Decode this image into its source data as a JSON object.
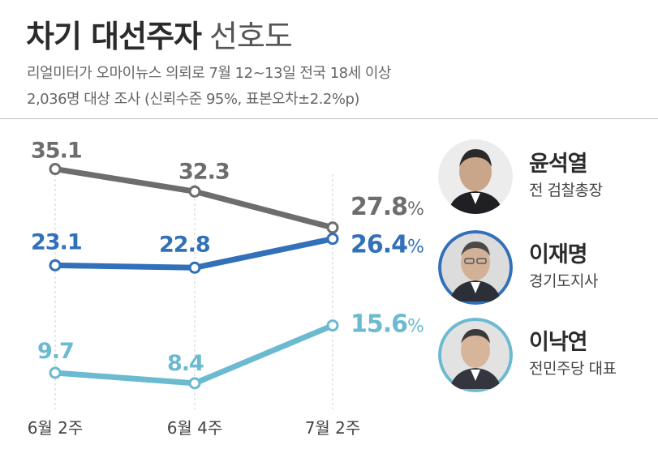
{
  "title": {
    "bold": "차기 대선주자",
    "light": "선호도"
  },
  "subtitle": {
    "line1": "리얼미터가 오마이뉴스 의뢰로 7월 12~13일 전국 18세 이상",
    "line2": "2,036명 대상 조사 (신뢰수준 95%, 표본오차±2.2%p)"
  },
  "chart_data": {
    "type": "line",
    "categories": [
      "6월 2주",
      "6월 4주",
      "7월 2주"
    ],
    "unit": "%",
    "series": [
      {
        "name": "윤석열",
        "color": "#6d6d6d",
        "values": [
          35.1,
          32.3,
          27.8
        ],
        "labels": [
          "35.1",
          "32.3",
          "27.8%"
        ]
      },
      {
        "name": "이재명",
        "color": "#3270b9",
        "values": [
          23.1,
          22.8,
          26.4
        ],
        "labels": [
          "23.1",
          "22.8",
          "26.4%"
        ]
      },
      {
        "name": "이낙연",
        "color": "#6bbad0",
        "values": [
          9.7,
          8.4,
          15.6
        ],
        "labels": [
          "9.7",
          "8.4",
          "15.6%"
        ]
      }
    ]
  },
  "people": [
    {
      "name": "윤석열",
      "role": "전 검찰총장",
      "bg": "#f0f0f0",
      "ring": "#6d6d6d"
    },
    {
      "name": "이재명",
      "role": "경기도지사",
      "bg": "#3270b9",
      "ring": "#3270b9"
    },
    {
      "name": "이낙연",
      "role": "전민주당 대표",
      "bg": "#6bbad0",
      "ring": "#6bbad0"
    }
  ]
}
